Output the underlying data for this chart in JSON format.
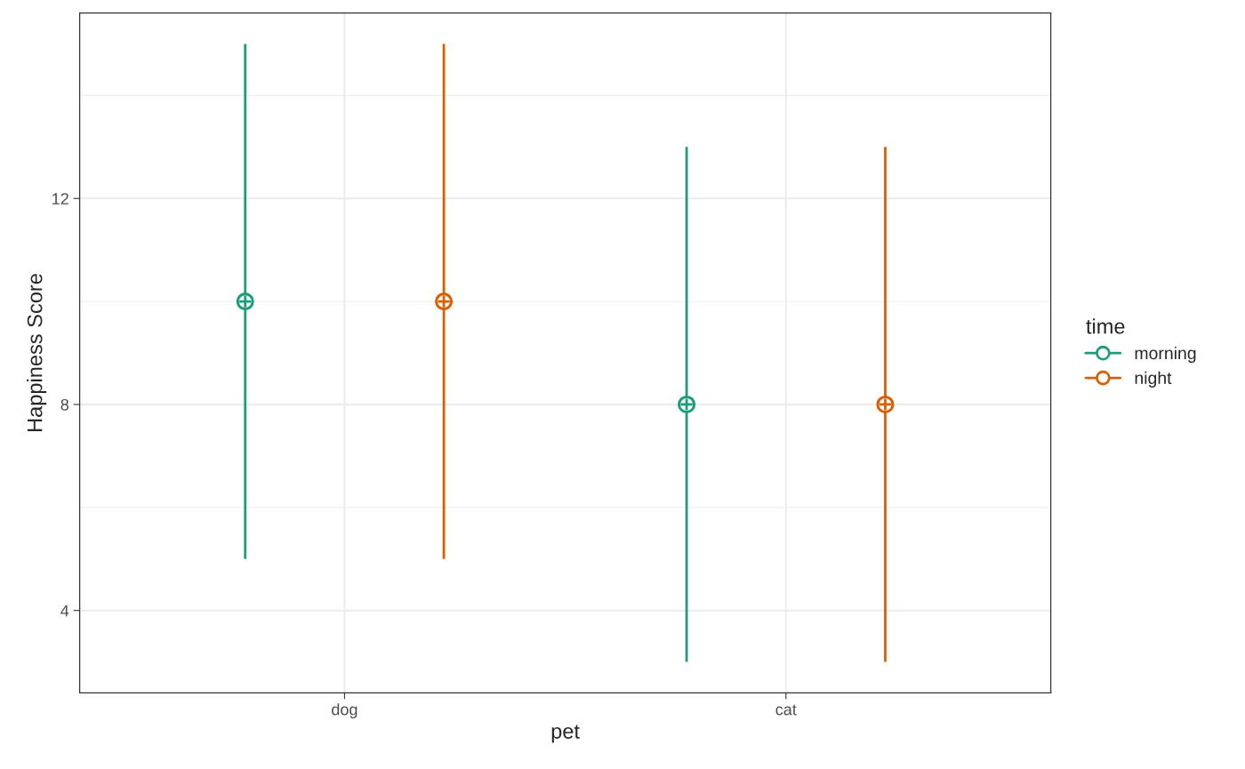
{
  "chart_data": {
    "type": "scatter",
    "xlabel": "pet",
    "ylabel": "Happiness Score",
    "legend_title": "time",
    "categories": [
      "dog",
      "cat"
    ],
    "series": [
      {
        "name": "morning",
        "color": "#1b9e77",
        "values": [
          10,
          8
        ],
        "errors": [
          [
            5,
            15
          ],
          [
            3,
            13
          ]
        ]
      },
      {
        "name": "night",
        "color": "#d95f02",
        "values": [
          10,
          8
        ],
        "errors": [
          [
            5,
            15
          ],
          [
            3,
            13
          ]
        ]
      }
    ],
    "ylim": [
      2.4,
      15.6
    ],
    "yticks": [
      4,
      8,
      12
    ],
    "grid": true,
    "legend": "right",
    "marker": "circle"
  }
}
